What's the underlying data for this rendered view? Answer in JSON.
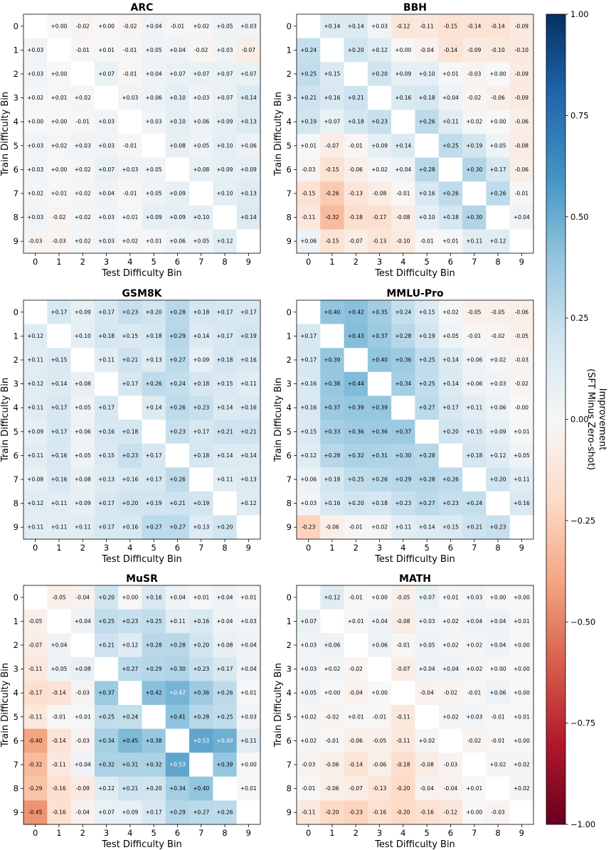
{
  "chart_data": [
    {
      "type": "heatmap",
      "title": "ARC",
      "xlabel": "Test Difficulty Bin",
      "ylabel": "Train Difficulty Bin",
      "x_ticks": [
        "0",
        "1",
        "2",
        "3",
        "4",
        "5",
        "6",
        "7",
        "8",
        "9"
      ],
      "y_ticks": [
        "0",
        "1",
        "2",
        "3",
        "4",
        "5",
        "6",
        "7",
        "8",
        "9"
      ],
      "cell_labels": [
        [
          "",
          "+0.00",
          "-0.02",
          "+0.00",
          "-0.02",
          "+0.04",
          "-0.01",
          "+0.02",
          "+0.05",
          "+0.03"
        ],
        [
          "+0.03",
          "",
          "-0.01",
          "+0.01",
          "-0.01",
          "+0.05",
          "+0.04",
          "-0.02",
          "+0.03",
          "-0.07"
        ],
        [
          "+0.03",
          "+0.00",
          "",
          "+0.07",
          "-0.01",
          "+0.04",
          "+0.07",
          "+0.07",
          "+0.07",
          "+0.07"
        ],
        [
          "+0.02",
          "+0.01",
          "+0.02",
          "",
          "+0.03",
          "+0.06",
          "+0.10",
          "+0.03",
          "+0.07",
          "+0.14"
        ],
        [
          "+0.00",
          "+0.00",
          "-0.01",
          "+0.03",
          "",
          "+0.03",
          "+0.10",
          "+0.06",
          "+0.09",
          "+0.13"
        ],
        [
          "+0.03",
          "+0.02",
          "+0.03",
          "+0.03",
          "-0.01",
          "",
          "+0.08",
          "+0.05",
          "+0.10",
          "+0.06"
        ],
        [
          "+0.03",
          "+0.00",
          "+0.02",
          "+0.07",
          "+0.03",
          "+0.05",
          "",
          "+0.08",
          "+0.09",
          "+0.09"
        ],
        [
          "+0.02",
          "+0.01",
          "+0.02",
          "+0.04",
          "-0.01",
          "+0.05",
          "+0.09",
          "",
          "+0.10",
          "+0.13"
        ],
        [
          "+0.03",
          "-0.02",
          "+0.02",
          "+0.03",
          "+0.01",
          "+0.09",
          "+0.09",
          "+0.10",
          "",
          "+0.14"
        ],
        [
          "-0.03",
          "-0.03",
          "+0.02",
          "+0.03",
          "+0.02",
          "+0.01",
          "+0.06",
          "+0.05",
          "+0.12",
          ""
        ]
      ]
    },
    {
      "type": "heatmap",
      "title": "BBH",
      "xlabel": "Test Difficulty Bin",
      "ylabel": "Train Difficulty Bin",
      "x_ticks": [
        "0",
        "1",
        "2",
        "3",
        "4",
        "5",
        "6",
        "7",
        "8",
        "9"
      ],
      "y_ticks": [
        "0",
        "1",
        "2",
        "3",
        "4",
        "5",
        "6",
        "7",
        "8",
        "9"
      ],
      "cell_labels": [
        [
          "",
          "+0.14",
          "+0.14",
          "+0.03",
          "-0.12",
          "-0.11",
          "-0.15",
          "-0.14",
          "-0.14",
          "-0.09"
        ],
        [
          "+0.24",
          "",
          "+0.20",
          "+0.12",
          "+0.00",
          "-0.04",
          "-0.14",
          "-0.09",
          "-0.10",
          "-0.10"
        ],
        [
          "+0.25",
          "+0.15",
          "",
          "+0.20",
          "+0.09",
          "+0.10",
          "+0.01",
          "-0.03",
          "+0.00",
          "-0.09"
        ],
        [
          "+0.21",
          "+0.16",
          "+0.21",
          "",
          "+0.16",
          "+0.18",
          "+0.04",
          "-0.02",
          "-0.06",
          "-0.09"
        ],
        [
          "+0.19",
          "+0.07",
          "+0.18",
          "+0.23",
          "",
          "+0.26",
          "+0.11",
          "+0.02",
          "+0.00",
          "-0.06"
        ],
        [
          "+0.01",
          "-0.07",
          "-0.01",
          "+0.09",
          "+0.14",
          "",
          "+0.25",
          "+0.19",
          "+0.05",
          "-0.08"
        ],
        [
          "-0.03",
          "-0.15",
          "-0.06",
          "+0.02",
          "+0.04",
          "+0.28",
          "",
          "+0.30",
          "+0.17",
          "-0.06"
        ],
        [
          "-0.15",
          "-0.26",
          "-0.13",
          "-0.08",
          "-0.01",
          "+0.16",
          "+0.26",
          "",
          "+0.26",
          "-0.01"
        ],
        [
          "-0.11",
          "-0.32",
          "-0.18",
          "-0.17",
          "-0.08",
          "+0.10",
          "+0.18",
          "+0.30",
          "",
          "+0.04"
        ],
        [
          "+0.06",
          "-0.15",
          "-0.07",
          "-0.13",
          "-0.10",
          "-0.01",
          "+0.01",
          "+0.11",
          "+0.12",
          ""
        ]
      ]
    },
    {
      "type": "heatmap",
      "title": "GSM8K",
      "xlabel": "Test Difficulty Bin",
      "ylabel": "Train Difficulty Bin",
      "x_ticks": [
        "0",
        "1",
        "2",
        "3",
        "4",
        "5",
        "6",
        "7",
        "8",
        "9"
      ],
      "y_ticks": [
        "0",
        "1",
        "2",
        "3",
        "4",
        "5",
        "6",
        "7",
        "8",
        "9"
      ],
      "cell_labels": [
        [
          "",
          "+0.17",
          "+0.09",
          "+0.17",
          "+0.23",
          "+0.20",
          "+0.28",
          "+0.18",
          "+0.17",
          "+0.17"
        ],
        [
          "+0.12",
          "",
          "+0.10",
          "+0.18",
          "+0.15",
          "+0.18",
          "+0.29",
          "+0.14",
          "+0.17",
          "+0.19"
        ],
        [
          "+0.11",
          "+0.15",
          "",
          "+0.11",
          "+0.21",
          "+0.13",
          "+0.27",
          "+0.09",
          "+0.18",
          "+0.16"
        ],
        [
          "+0.12",
          "+0.14",
          "+0.08",
          "",
          "+0.17",
          "+0.26",
          "+0.24",
          "+0.18",
          "+0.15",
          "+0.11"
        ],
        [
          "+0.11",
          "+0.17",
          "+0.05",
          "+0.17",
          "",
          "+0.14",
          "+0.26",
          "+0.23",
          "+0.14",
          "+0.16"
        ],
        [
          "+0.09",
          "+0.17",
          "+0.06",
          "+0.16",
          "+0.18",
          "",
          "+0.23",
          "+0.17",
          "+0.21",
          "+0.21"
        ],
        [
          "+0.11",
          "+0.16",
          "+0.05",
          "+0.15",
          "+0.23",
          "+0.17",
          "",
          "+0.18",
          "+0.14",
          "+0.14"
        ],
        [
          "+0.08",
          "+0.16",
          "+0.08",
          "+0.13",
          "+0.16",
          "+0.17",
          "+0.26",
          "",
          "+0.11",
          "+0.13"
        ],
        [
          "+0.12",
          "+0.11",
          "+0.09",
          "+0.17",
          "+0.20",
          "+0.19",
          "+0.21",
          "+0.19",
          "",
          "+0.12"
        ],
        [
          "+0.11",
          "+0.11",
          "+0.11",
          "+0.17",
          "+0.16",
          "+0.27",
          "+0.27",
          "+0.13",
          "+0.20",
          ""
        ]
      ]
    },
    {
      "type": "heatmap",
      "title": "MMLU-Pro",
      "xlabel": "Test Difficulty Bin",
      "ylabel": "Train Difficulty Bin",
      "x_ticks": [
        "0",
        "1",
        "2",
        "3",
        "4",
        "5",
        "6",
        "7",
        "8",
        "9"
      ],
      "y_ticks": [
        "0",
        "1",
        "2",
        "3",
        "4",
        "5",
        "6",
        "7",
        "8",
        "9"
      ],
      "cell_labels": [
        [
          "",
          "+0.40",
          "+0.42",
          "+0.35",
          "+0.24",
          "+0.15",
          "+0.02",
          "-0.05",
          "-0.05",
          "-0.06"
        ],
        [
          "+0.17",
          "",
          "+0.43",
          "+0.37",
          "+0.28",
          "+0.19",
          "+0.05",
          "-0.01",
          "-0.02",
          "-0.05"
        ],
        [
          "+0.17",
          "+0.39",
          "",
          "+0.40",
          "+0.36",
          "+0.25",
          "+0.14",
          "+0.06",
          "+0.02",
          "-0.03"
        ],
        [
          "+0.16",
          "+0.38",
          "+0.44",
          "",
          "+0.34",
          "+0.25",
          "+0.14",
          "+0.06",
          "+0.03",
          "-0.02"
        ],
        [
          "+0.16",
          "+0.37",
          "+0.39",
          "+0.39",
          "",
          "+0.27",
          "+0.17",
          "+0.11",
          "+0.06",
          "-0.00"
        ],
        [
          "+0.15",
          "+0.33",
          "+0.36",
          "+0.36",
          "+0.37",
          "",
          "+0.20",
          "+0.15",
          "+0.09",
          "+0.01"
        ],
        [
          "+0.12",
          "+0.28",
          "+0.32",
          "+0.31",
          "+0.30",
          "+0.28",
          "",
          "+0.18",
          "+0.12",
          "+0.05"
        ],
        [
          "+0.06",
          "+0.18",
          "+0.25",
          "+0.26",
          "+0.29",
          "+0.28",
          "+0.26",
          "",
          "+0.20",
          "+0.11"
        ],
        [
          "+0.03",
          "+0.16",
          "+0.20",
          "+0.18",
          "+0.23",
          "+0.27",
          "+0.23",
          "+0.24",
          "",
          "+0.16"
        ],
        [
          "-0.23",
          "-0.06",
          "-0.01",
          "+0.02",
          "+0.11",
          "+0.14",
          "+0.15",
          "+0.21",
          "+0.23",
          ""
        ]
      ]
    },
    {
      "type": "heatmap",
      "title": "MuSR",
      "xlabel": "Test Difficulty Bin",
      "ylabel": "Train Difficulty Bin",
      "x_ticks": [
        "0",
        "1",
        "2",
        "3",
        "4",
        "5",
        "6",
        "7",
        "8",
        "9"
      ],
      "y_ticks": [
        "0",
        "1",
        "2",
        "3",
        "4",
        "5",
        "6",
        "7",
        "8",
        "9"
      ],
      "cell_labels": [
        [
          "",
          "-0.05",
          "-0.04",
          "+0.20",
          "+0.00",
          "+0.16",
          "+0.04",
          "+0.01",
          "+0.04",
          "+0.01"
        ],
        [
          "-0.05",
          "",
          "+0.04",
          "+0.25",
          "+0.23",
          "+0.25",
          "+0.11",
          "+0.16",
          "+0.04",
          "+0.03"
        ],
        [
          "-0.07",
          "+0.04",
          "",
          "+0.21",
          "+0.12",
          "+0.28",
          "+0.28",
          "+0.20",
          "+0.08",
          "+0.04"
        ],
        [
          "-0.11",
          "+0.05",
          "+0.08",
          "",
          "+0.27",
          "+0.29",
          "+0.30",
          "+0.23",
          "+0.17",
          "+0.04"
        ],
        [
          "-0.17",
          "-0.14",
          "-0.03",
          "+0.37",
          "",
          "+0.42",
          "+0.47",
          "+0.36",
          "+0.26",
          "+0.01"
        ],
        [
          "-0.11",
          "-0.01",
          "+0.01",
          "+0.25",
          "+0.24",
          "",
          "+0.41",
          "+0.28",
          "+0.25",
          "+0.03"
        ],
        [
          "-0.40",
          "-0.14",
          "-0.03",
          "+0.34",
          "+0.45",
          "+0.38",
          "",
          "+0.53",
          "+0.49",
          "+0.11"
        ],
        [
          "-0.32",
          "-0.11",
          "+0.04",
          "+0.32",
          "+0.31",
          "+0.32",
          "+0.53",
          "",
          "+0.39",
          "+0.00"
        ],
        [
          "-0.29",
          "-0.16",
          "-0.09",
          "+0.12",
          "+0.21",
          "+0.20",
          "+0.34",
          "+0.40",
          "",
          "+0.01"
        ],
        [
          "-0.45",
          "-0.16",
          "-0.04",
          "+0.07",
          "+0.09",
          "+0.17",
          "+0.29",
          "+0.27",
          "+0.26",
          ""
        ]
      ]
    },
    {
      "type": "heatmap",
      "title": "MATH",
      "xlabel": "Test Difficulty Bin",
      "ylabel": "Train Difficulty Bin",
      "x_ticks": [
        "0",
        "1",
        "2",
        "3",
        "4",
        "5",
        "6",
        "7",
        "8",
        "9"
      ],
      "y_ticks": [
        "0",
        "1",
        "2",
        "3",
        "4",
        "5",
        "6",
        "7",
        "8",
        "9"
      ],
      "cell_labels": [
        [
          "",
          "+0.12",
          "-0.01",
          "+0.00",
          "-0.05",
          "+0.07",
          "+0.01",
          "+0.03",
          "+0.00",
          "+0.00"
        ],
        [
          "+0.07",
          "",
          "+0.01",
          "+0.04",
          "-0.08",
          "+0.03",
          "+0.02",
          "+0.04",
          "+0.04",
          "+0.01"
        ],
        [
          "+0.03",
          "+0.06",
          "",
          "+0.06",
          "-0.01",
          "+0.05",
          "+0.02",
          "+0.02",
          "+0.04",
          "+0.00"
        ],
        [
          "+0.03",
          "+0.02",
          "-0.02",
          "",
          "-0.07",
          "+0.04",
          "+0.04",
          "+0.02",
          "+0.00",
          "+0.00"
        ],
        [
          "+0.05",
          "+0.00",
          "-0.04",
          "+0.00",
          "",
          "-0.04",
          "-0.02",
          "-0.01",
          "+0.06",
          "+0.00"
        ],
        [
          "+0.02",
          "-0.02",
          "+0.01",
          "-0.01",
          "-0.11",
          "",
          "+0.02",
          "+0.03",
          "-0.01",
          "+0.01"
        ],
        [
          "+0.02",
          "-0.01",
          "-0.06",
          "-0.05",
          "-0.11",
          "+0.02",
          "",
          "-0.02",
          "-0.01",
          "+0.00"
        ],
        [
          "-0.03",
          "-0.06",
          "-0.14",
          "-0.06",
          "-0.18",
          "-0.08",
          "-0.03",
          "",
          "+0.02",
          "+0.02"
        ],
        [
          "-0.01",
          "-0.06",
          "-0.07",
          "-0.13",
          "-0.20",
          "-0.04",
          "-0.04",
          "+0.01",
          "",
          "+0.02"
        ],
        [
          "-0.11",
          "-0.20",
          "-0.23",
          "-0.16",
          "-0.20",
          "-0.16",
          "-0.12",
          "+0.00",
          "-0.03",
          ""
        ]
      ]
    }
  ],
  "colorbar": {
    "label_line1": "Improvement",
    "label_line2": "(SFT Minus Zero-shot)",
    "range": [
      -1.0,
      1.0
    ],
    "ticks": [
      1.0,
      0.75,
      0.5,
      0.25,
      0.0,
      -0.25,
      -0.5,
      -0.75,
      -1.0
    ],
    "tick_labels": [
      "1.00",
      "0.75",
      "0.50",
      "0.25",
      "0.00",
      "−0.25",
      "−0.50",
      "−0.75",
      "−1.00"
    ],
    "colormap": "RdBu"
  }
}
